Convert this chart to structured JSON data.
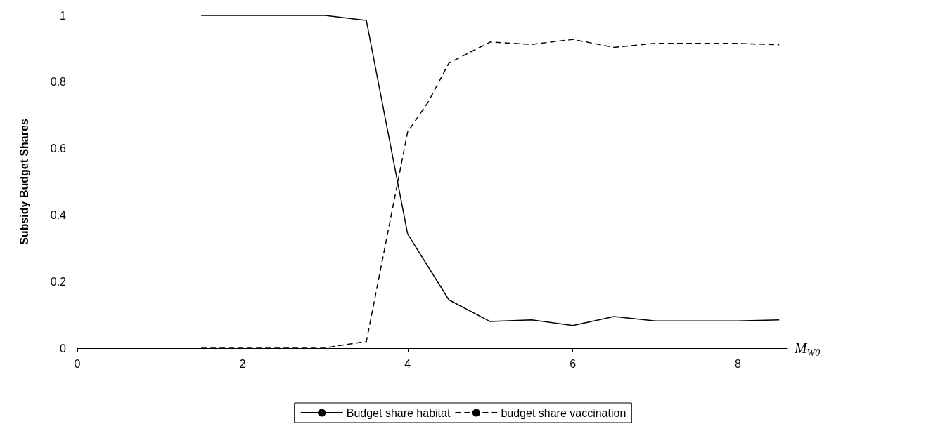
{
  "chart_data": {
    "type": "line",
    "xlabel": "M$_{W0}$",
    "ylabel": "Subsidy Budget Shares",
    "xlim": [
      0,
      8.6
    ],
    "xticks": [
      0,
      2,
      4,
      6,
      8
    ],
    "ylim": [
      0,
      1
    ],
    "yticks": [
      0,
      0.2,
      0.4,
      0.6,
      0.8,
      1
    ],
    "grid": false,
    "legend": "bottom",
    "marker": "none",
    "series": [
      {
        "name": "Budget share habitat",
        "color": "#000000",
        "line_style": "solid",
        "x": [
          1.5,
          3,
          3.5,
          4,
          4.5,
          5,
          5.5,
          6,
          6.5,
          7,
          7.5,
          8,
          8.5
        ],
        "values": [
          1,
          1,
          0.985,
          0.343,
          0.145,
          0.08,
          0.085,
          0.068,
          0.095,
          0.082,
          0.082,
          0.082,
          0.085
        ]
      },
      {
        "name": "budget share vaccination",
        "color": "#000000",
        "line_style": "dashed",
        "x": [
          1.5,
          3,
          3.1,
          3.5,
          4,
          4.25,
          4.5,
          5,
          5.5,
          6,
          6.5,
          7,
          7.5,
          8,
          8.5
        ],
        "values": [
          0,
          0,
          0.005,
          0.02,
          0.65,
          0.74,
          0.857,
          0.92,
          0.913,
          0.928,
          0.904,
          0.916,
          0.916,
          0.916,
          0.912
        ]
      }
    ]
  }
}
